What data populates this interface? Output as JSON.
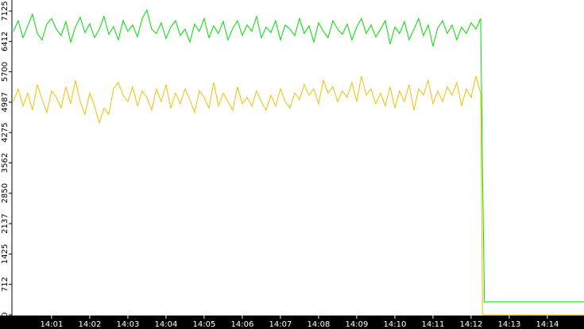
{
  "chart_data": {
    "type": "line",
    "x": [
      0,
      0.125,
      0.25,
      0.375,
      0.5,
      0.625,
      0.75,
      0.875,
      1,
      1.125,
      1.25,
      1.375,
      1.5,
      1.625,
      1.75,
      1.875,
      2,
      2.125,
      2.25,
      2.375,
      2.5,
      2.625,
      2.75,
      2.875,
      3,
      3.125,
      3.25,
      3.375,
      3.5,
      3.625,
      3.75,
      3.875,
      4,
      4.125,
      4.25,
      4.375,
      4.5,
      4.625,
      4.75,
      4.875,
      5,
      5.125,
      5.25,
      5.375,
      5.5,
      5.625,
      5.75,
      5.875,
      6,
      6.125,
      6.25,
      6.375,
      6.5,
      6.625,
      6.75,
      6.875,
      7,
      7.125,
      7.25,
      7.375,
      7.5,
      7.625,
      7.75,
      7.875,
      8,
      8.125,
      8.25,
      8.375,
      8.5,
      8.625,
      8.75,
      8.875,
      9,
      9.125,
      9.25,
      9.375,
      9.5,
      9.625,
      9.75,
      9.875,
      10,
      10.125,
      10.25,
      10.375,
      10.5,
      10.625,
      10.75,
      10.875,
      11,
      11.125,
      11.25,
      11.375,
      11.5,
      11.625,
      11.75,
      11.875,
      12,
      12.125,
      12.25,
      12.3,
      12.35,
      14.96
    ],
    "series": [
      {
        "color": "#00dd00",
        "values": [
          6650,
          6900,
          6500,
          6780,
          7050,
          6600,
          6450,
          6820,
          6950,
          6700,
          6550,
          6880,
          6400,
          6750,
          6980,
          6620,
          6830,
          6500,
          6700,
          7000,
          6580,
          6760,
          6450,
          6900,
          6650,
          6800,
          6520,
          6950,
          7150,
          6700,
          6600,
          6850,
          6480,
          6750,
          6900,
          6550,
          6700,
          6400,
          6820,
          6650,
          6950,
          6500,
          6780,
          6600,
          6880,
          6450,
          6720,
          6900,
          6550,
          6800,
          6650,
          7000,
          6500,
          6750,
          6620,
          6900,
          6450,
          6800,
          6700,
          6550,
          6950,
          6600,
          6780,
          6400,
          6850,
          6650,
          6500,
          6900,
          6700,
          6580,
          6820,
          6450,
          6750,
          6950,
          6600,
          6800,
          6520,
          6700,
          6900,
          6350,
          6750,
          6600,
          6880,
          6450,
          6700,
          6950,
          6550,
          6800,
          6300,
          6720,
          6900,
          6600,
          6800,
          6450,
          6750,
          6600,
          6850,
          6700,
          6950,
          3300,
          300,
          300
        ]
      },
      {
        "color": "#f0c000",
        "values": [
          5000,
          5300,
          4900,
          5200,
          4800,
          5400,
          5050,
          4750,
          5250,
          5100,
          4850,
          5350,
          4950,
          5500,
          5000,
          4700,
          5200,
          4900,
          4500,
          4850,
          4700,
          5300,
          5450,
          5150,
          5000,
          5350,
          4900,
          5250,
          5100,
          4800,
          5300,
          5000,
          5400,
          4850,
          5200,
          4950,
          5300,
          5050,
          4750,
          5250,
          5100,
          4850,
          5450,
          4900,
          5200,
          5000,
          4800,
          5350,
          4950,
          5100,
          4900,
          5250,
          5000,
          4800,
          5150,
          4900,
          5300,
          5000,
          4850,
          5200,
          5050,
          5400,
          5150,
          5300,
          4950,
          5500,
          5200,
          5350,
          5000,
          5250,
          5100,
          5450,
          5000,
          5600,
          5150,
          5300,
          4950,
          5200,
          4900,
          5350,
          4850,
          5250,
          5000,
          5400,
          4800,
          5300,
          5150,
          5500,
          4950,
          5250,
          5000,
          5350,
          5150,
          5450,
          4900,
          5300,
          5100,
          5600,
          5200,
          0,
          0,
          0
        ]
      }
    ],
    "xlim": [
      -0.04,
      14.96
    ],
    "xticks": [
      {
        "value": 1,
        "label": "14:01"
      },
      {
        "value": 2,
        "label": "14:02"
      },
      {
        "value": 3,
        "label": "14:03"
      },
      {
        "value": 4,
        "label": "14:04"
      },
      {
        "value": 5,
        "label": "14:05"
      },
      {
        "value": 6,
        "label": "14:06"
      },
      {
        "value": 7,
        "label": "14:07"
      },
      {
        "value": 8,
        "label": "14:08"
      },
      {
        "value": 9,
        "label": "14:09"
      },
      {
        "value": 10,
        "label": "14:10"
      },
      {
        "value": 11,
        "label": "14:11"
      },
      {
        "value": 12,
        "label": "14:12"
      },
      {
        "value": 13,
        "label": "14:13"
      },
      {
        "value": 14,
        "label": "14:14"
      }
    ],
    "ylim": [
      0,
      7385
    ],
    "yticks": [
      0,
      712,
      1425,
      2137,
      2850,
      3562,
      4275,
      4987,
      5700,
      6412,
      7125
    ]
  }
}
